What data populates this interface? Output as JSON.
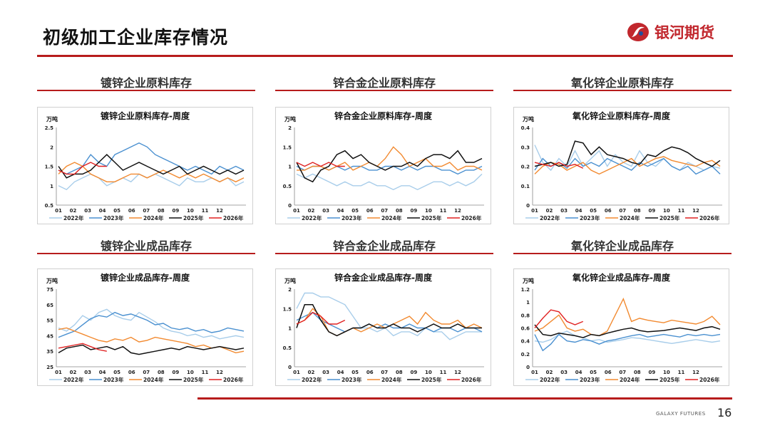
{
  "header": {
    "title": "初级加工企业库存情况",
    "brand_name": "银河期货"
  },
  "sections": [
    "镀锌企业原料库存",
    "锌合金企业原料库存",
    "氧化锌企业原料库存",
    "镀锌企业成品库存",
    "锌合金企业成品库存",
    "氧化锌企业成品库存"
  ],
  "footer": {
    "brand": "GALAXY FUTURES",
    "page_number": "16"
  },
  "colors": {
    "y2022": "#a8cdea",
    "y2023": "#4a90d0",
    "y2024": "#f28a30",
    "y2025": "#111111",
    "y2026": "#e02020",
    "accent": "#b71c1c"
  },
  "chart_data": [
    {
      "type": "line",
      "title": "镀锌企业原料库存-周度",
      "unit": "万吨",
      "yticks": [
        "2.5",
        "2",
        "1.5",
        "1",
        "0.5"
      ],
      "ylim": [
        0.5,
        2.5
      ],
      "xticks": [
        "01",
        "02",
        "03",
        "04",
        "05",
        "06",
        "07",
        "08",
        "09",
        "10",
        "11",
        "12"
      ],
      "legend": [
        "2022年",
        "2023年",
        "2024年",
        "2025年",
        "2026年"
      ],
      "series": [
        {
          "name": "2022年",
          "values": [
            1.0,
            0.9,
            1.1,
            1.2,
            1.3,
            1.2,
            1.0,
            1.1,
            1.2,
            1.1,
            1.3,
            1.2,
            1.3,
            1.2,
            1.1,
            1.0,
            1.2,
            1.1,
            1.1,
            1.2,
            1.1,
            1.2,
            1.0,
            1.1
          ]
        },
        {
          "name": "2023年",
          "values": [
            1.4,
            1.3,
            1.4,
            1.5,
            1.8,
            1.6,
            1.5,
            1.8,
            1.9,
            2.0,
            2.1,
            2.0,
            1.8,
            1.7,
            1.6,
            1.5,
            1.4,
            1.5,
            1.4,
            1.3,
            1.5,
            1.4,
            1.5,
            1.4
          ]
        },
        {
          "name": "2024年",
          "values": [
            1.3,
            1.5,
            1.6,
            1.5,
            1.3,
            1.2,
            1.1,
            1.1,
            1.2,
            1.3,
            1.3,
            1.2,
            1.3,
            1.4,
            1.3,
            1.2,
            1.3,
            1.2,
            1.3,
            1.2,
            1.1,
            1.2,
            1.1,
            1.2
          ]
        },
        {
          "name": "2025年",
          "values": [
            1.5,
            1.2,
            1.3,
            1.3,
            1.4,
            1.6,
            1.8,
            1.6,
            1.4,
            1.5,
            1.6,
            1.5,
            1.4,
            1.3,
            1.4,
            1.5,
            1.3,
            1.4,
            1.5,
            1.4,
            1.3,
            1.4,
            1.3,
            1.4
          ]
        },
        {
          "name": "2026年",
          "values": [
            1.4,
            1.3,
            1.3,
            1.5,
            1.6,
            1.5,
            1.5
          ]
        }
      ]
    },
    {
      "type": "line",
      "title": "锌合金企业原料库存-周度",
      "unit": "万吨",
      "yticks": [
        "2",
        "1.5",
        "1",
        "0.5",
        "0"
      ],
      "ylim": [
        0,
        2
      ],
      "xticks": [
        "01",
        "02",
        "03",
        "04",
        "05",
        "06",
        "07",
        "08",
        "09",
        "10",
        "11",
        "12"
      ],
      "legend": [
        "2022年",
        "2023年",
        "2024年",
        "2025年",
        "2026年"
      ],
      "series": [
        {
          "name": "2022年",
          "values": [
            0.8,
            0.7,
            0.8,
            0.7,
            0.6,
            0.5,
            0.6,
            0.5,
            0.5,
            0.6,
            0.5,
            0.5,
            0.4,
            0.5,
            0.5,
            0.4,
            0.5,
            0.6,
            0.6,
            0.5,
            0.6,
            0.5,
            0.6,
            0.8
          ]
        },
        {
          "name": "2023年",
          "values": [
            1.0,
            0.9,
            1.0,
            1.0,
            0.9,
            1.0,
            0.9,
            1.0,
            1.0,
            0.9,
            0.9,
            1.0,
            1.0,
            0.9,
            1.0,
            0.9,
            1.0,
            1.0,
            0.9,
            0.9,
            0.8,
            0.9,
            0.9,
            1.0
          ]
        },
        {
          "name": "2024年",
          "values": [
            0.9,
            0.9,
            1.0,
            1.0,
            0.9,
            1.0,
            1.1,
            0.9,
            1.0,
            1.1,
            1.0,
            1.2,
            1.5,
            1.3,
            1.0,
            1.1,
            1.2,
            1.0,
            1.0,
            1.1,
            0.9,
            1.0,
            1.0,
            0.9
          ]
        },
        {
          "name": "2025年",
          "values": [
            1.1,
            0.7,
            0.6,
            0.9,
            1.0,
            1.3,
            1.4,
            1.2,
            1.3,
            1.1,
            1.0,
            0.9,
            1.0,
            1.0,
            1.1,
            1.0,
            1.2,
            1.3,
            1.3,
            1.2,
            1.4,
            1.1,
            1.1,
            1.2
          ]
        },
        {
          "name": "2026年",
          "values": [
            1.1,
            1.0,
            1.1,
            1.0,
            1.1,
            1.0,
            1.0
          ]
        }
      ]
    },
    {
      "type": "line",
      "title": "氧化锌企业原料库存-周度",
      "unit": "万吨",
      "yticks": [
        "0.4",
        "0.3",
        "0.2",
        "0.1",
        "0"
      ],
      "ylim": [
        0,
        0.4
      ],
      "xticks": [
        "01",
        "02",
        "03",
        "04",
        "05",
        "06",
        "07",
        "08",
        "09",
        "10",
        "11",
        "12"
      ],
      "legend": [
        "2022年",
        "2023年",
        "2024年",
        "2025年",
        "2026年"
      ],
      "series": [
        {
          "name": "2022年",
          "values": [
            0.31,
            0.22,
            0.18,
            0.24,
            0.2,
            0.28,
            0.2,
            0.24,
            0.28,
            0.2,
            0.26,
            0.22,
            0.2,
            0.28,
            0.22,
            0.2,
            0.24,
            0.2,
            0.18,
            0.22,
            0.2,
            0.18,
            0.2,
            0.19
          ]
        },
        {
          "name": "2023年",
          "values": [
            0.18,
            0.24,
            0.2,
            0.22,
            0.19,
            0.24,
            0.2,
            0.22,
            0.2,
            0.24,
            0.22,
            0.2,
            0.18,
            0.22,
            0.2,
            0.22,
            0.24,
            0.2,
            0.18,
            0.2,
            0.16,
            0.18,
            0.2,
            0.16
          ]
        },
        {
          "name": "2024年",
          "values": [
            0.16,
            0.2,
            0.22,
            0.21,
            0.18,
            0.2,
            0.22,
            0.18,
            0.16,
            0.18,
            0.2,
            0.22,
            0.24,
            0.2,
            0.22,
            0.24,
            0.25,
            0.23,
            0.22,
            0.21,
            0.2,
            0.22,
            0.23,
            0.2
          ]
        },
        {
          "name": "2025年",
          "values": [
            0.2,
            0.21,
            0.22,
            0.2,
            0.21,
            0.33,
            0.32,
            0.26,
            0.3,
            0.26,
            0.25,
            0.24,
            0.22,
            0.21,
            0.26,
            0.25,
            0.28,
            0.3,
            0.29,
            0.27,
            0.24,
            0.22,
            0.2,
            0.23
          ]
        },
        {
          "name": "2026年",
          "values": [
            0.22,
            0.21,
            0.2,
            0.22,
            0.2,
            0.21,
            0.19
          ]
        }
      ]
    },
    {
      "type": "line",
      "title": "镀锌企业成品库存-周度",
      "unit": "万吨",
      "yticks": [
        "75",
        "65",
        "55",
        "45",
        "35",
        "25"
      ],
      "ylim": [
        25,
        75
      ],
      "xticks": [
        "01",
        "02",
        "03",
        "04",
        "05",
        "06",
        "07",
        "08",
        "09",
        "10",
        "11",
        "12"
      ],
      "legend": [
        "2022年",
        "2023年",
        "2024年",
        "2025年",
        "2026年"
      ],
      "series": [
        {
          "name": "2022年",
          "values": [
            50,
            48,
            52,
            58,
            55,
            60,
            62,
            58,
            56,
            55,
            60,
            57,
            54,
            50,
            48,
            47,
            45,
            46,
            44,
            45,
            43,
            44,
            45,
            44
          ]
        },
        {
          "name": "2023年",
          "values": [
            44,
            46,
            48,
            52,
            56,
            58,
            57,
            60,
            58,
            59,
            57,
            55,
            52,
            53,
            50,
            49,
            50,
            48,
            49,
            47,
            48,
            50,
            49,
            48
          ]
        },
        {
          "name": "2024年",
          "values": [
            49,
            50,
            48,
            46,
            44,
            42,
            41,
            43,
            42,
            44,
            41,
            42,
            44,
            43,
            42,
            41,
            40,
            38,
            39,
            37,
            38,
            36,
            34,
            35
          ]
        },
        {
          "name": "2025年",
          "values": [
            34,
            37,
            38,
            39,
            36,
            37,
            38,
            36,
            38,
            34,
            33,
            34,
            35,
            36,
            37,
            36,
            38,
            37,
            36,
            37,
            38,
            37,
            36,
            37
          ]
        },
        {
          "name": "2026年",
          "values": [
            37,
            38,
            39,
            40,
            38,
            36,
            35
          ]
        }
      ]
    },
    {
      "type": "line",
      "title": "锌合金企业成品库存-周度",
      "unit": "万吨",
      "yticks": [
        "2",
        "1.5",
        "1",
        "0.5",
        "0"
      ],
      "ylim": [
        0,
        2
      ],
      "xticks": [
        "01",
        "02",
        "03",
        "04",
        "05",
        "06",
        "07",
        "08",
        "09",
        "10",
        "11",
        "12"
      ],
      "legend": [
        "2022年",
        "2023年",
        "2024年",
        "2025年",
        "2026年"
      ],
      "series": [
        {
          "name": "2022年",
          "values": [
            1.5,
            1.9,
            1.9,
            1.8,
            1.8,
            1.7,
            1.6,
            1.3,
            1.0,
            1.0,
            0.9,
            1.0,
            0.8,
            0.9,
            0.9,
            0.8,
            1.0,
            0.9,
            0.9,
            0.7,
            0.8,
            0.9,
            0.9,
            0.9
          ]
        },
        {
          "name": "2023年",
          "values": [
            1.2,
            1.3,
            1.4,
            1.2,
            1.1,
            1.0,
            0.9,
            1.0,
            1.0,
            1.1,
            1.0,
            1.1,
            1.0,
            1.0,
            1.1,
            1.0,
            1.0,
            0.9,
            1.0,
            1.0,
            0.9,
            1.0,
            1.0,
            0.9
          ]
        },
        {
          "name": "2024年",
          "values": [
            1.1,
            1.2,
            1.5,
            1.3,
            0.9,
            0.8,
            0.9,
            1.0,
            0.9,
            1.0,
            1.1,
            1.0,
            1.1,
            1.2,
            1.3,
            1.1,
            1.4,
            1.2,
            1.1,
            1.1,
            1.2,
            1.0,
            1.1,
            1.0
          ]
        },
        {
          "name": "2025年",
          "values": [
            1.0,
            1.6,
            1.6,
            1.2,
            0.9,
            0.8,
            0.9,
            1.0,
            1.0,
            1.1,
            1.0,
            1.0,
            1.1,
            1.0,
            1.0,
            0.9,
            1.0,
            1.1,
            1.0,
            1.0,
            1.1,
            1.0,
            1.0,
            1.0
          ]
        },
        {
          "name": "2026年",
          "values": [
            1.1,
            1.2,
            1.4,
            1.3,
            1.1,
            1.1,
            1.2
          ]
        }
      ]
    },
    {
      "type": "line",
      "title": "氧化锌企业成品库存-周度",
      "unit": "万吨",
      "yticks": [
        "1.2",
        "1",
        "0.8",
        "0.6",
        "0.4",
        "0.2",
        "0"
      ],
      "ylim": [
        0,
        1.2
      ],
      "xticks": [
        "01",
        "02",
        "03",
        "04",
        "05",
        "06",
        "07",
        "08",
        "09",
        "10",
        "11",
        "12"
      ],
      "legend": [
        "2022年",
        "2023年",
        "2024年",
        "2025年",
        "2026年"
      ],
      "series": [
        {
          "name": "2022年",
          "values": [
            0.4,
            0.38,
            0.42,
            0.5,
            0.55,
            0.48,
            0.45,
            0.4,
            0.42,
            0.38,
            0.4,
            0.42,
            0.45,
            0.44,
            0.42,
            0.4,
            0.38,
            0.36,
            0.38,
            0.4,
            0.42,
            0.4,
            0.38,
            0.4
          ]
        },
        {
          "name": "2023年",
          "values": [
            0.5,
            0.25,
            0.35,
            0.5,
            0.4,
            0.38,
            0.42,
            0.4,
            0.35,
            0.4,
            0.42,
            0.45,
            0.48,
            0.5,
            0.46,
            0.48,
            0.5,
            0.48,
            0.46,
            0.5,
            0.48,
            0.5,
            0.48,
            0.5
          ]
        },
        {
          "name": "2024年",
          "values": [
            0.55,
            0.6,
            0.7,
            0.8,
            0.6,
            0.55,
            0.58,
            0.5,
            0.48,
            0.55,
            0.8,
            1.05,
            0.7,
            0.75,
            0.72,
            0.7,
            0.68,
            0.72,
            0.7,
            0.68,
            0.66,
            0.7,
            0.78,
            0.65
          ]
        },
        {
          "name": "2025年",
          "values": [
            0.65,
            0.5,
            0.48,
            0.52,
            0.5,
            0.48,
            0.45,
            0.5,
            0.48,
            0.52,
            0.55,
            0.58,
            0.6,
            0.56,
            0.54,
            0.55,
            0.56,
            0.58,
            0.6,
            0.58,
            0.56,
            0.6,
            0.62,
            0.58
          ]
        },
        {
          "name": "2026年",
          "values": [
            0.6,
            0.75,
            0.88,
            0.85,
            0.7,
            0.65,
            0.7
          ]
        }
      ]
    }
  ]
}
